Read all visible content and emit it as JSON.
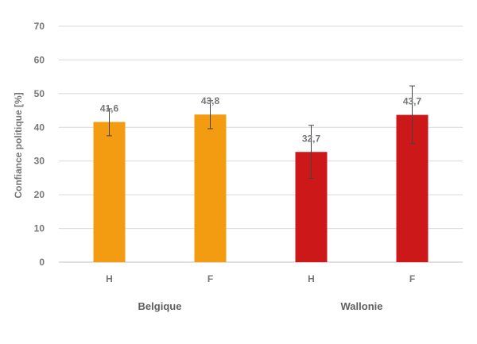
{
  "chart_data": {
    "type": "bar",
    "ylabel": "Confiance politique [%]",
    "ylim": [
      0,
      70
    ],
    "yticks": [
      0,
      10,
      20,
      30,
      40,
      50,
      60,
      70
    ],
    "grid": true,
    "groups": [
      "Belgique",
      "Wallonie"
    ],
    "categories": [
      "H",
      "F",
      "H",
      "F"
    ],
    "category_group": [
      0,
      0,
      1,
      1
    ],
    "values": [
      41.6,
      43.8,
      32.7,
      43.7
    ],
    "value_labels": [
      "41,6",
      "43,8",
      "32,7",
      "43,7"
    ],
    "error_low": [
      37.5,
      39.6,
      24.9,
      35.2
    ],
    "error_high": [
      45.5,
      47.9,
      40.6,
      52.3
    ],
    "colors": [
      "#f39c12",
      "#f39c12",
      "#cc1818",
      "#cc1818"
    ]
  }
}
